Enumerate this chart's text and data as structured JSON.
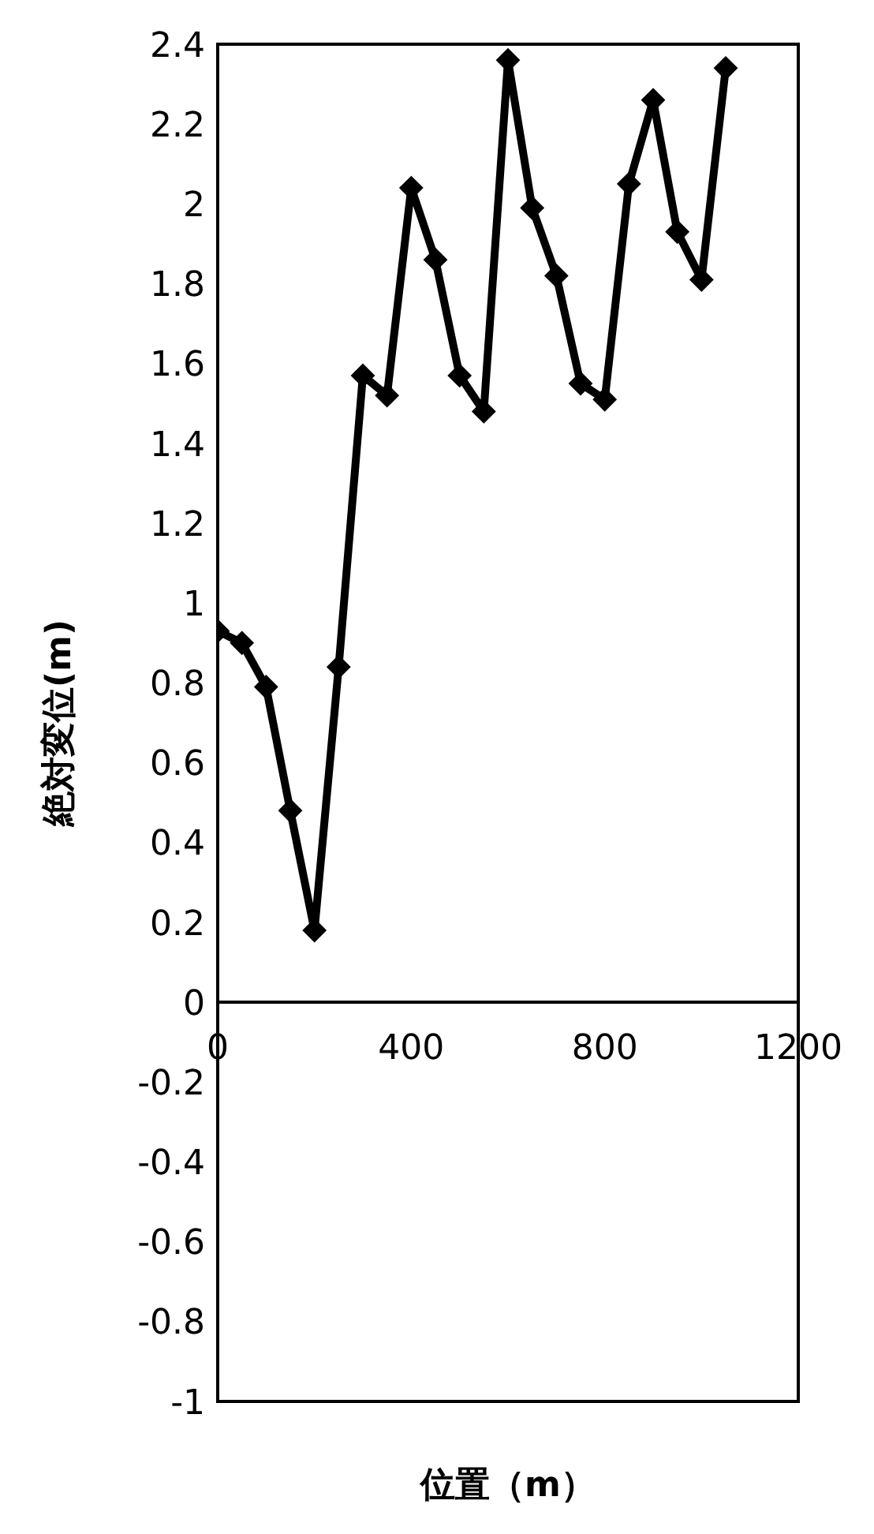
{
  "chart_data": {
    "type": "line",
    "xlabel": "位置（m）",
    "ylabel": "絶対変位(m)",
    "x": [
      0,
      50,
      100,
      150,
      200,
      250,
      300,
      350,
      400,
      450,
      500,
      550,
      600,
      650,
      700,
      750,
      800,
      850,
      900,
      950,
      1000,
      1050
    ],
    "series": [
      {
        "color": "#000000",
        "values": [
          0.93,
          0.9,
          0.79,
          0.48,
          0.18,
          0.84,
          1.57,
          1.52,
          2.04,
          1.86,
          1.57,
          1.48,
          2.36,
          1.99,
          1.82,
          1.55,
          1.51,
          2.05,
          2.26,
          1.93,
          1.81,
          2.34
        ]
      }
    ],
    "xlim": [
      0,
      1200
    ],
    "xticks": [
      0,
      400,
      800,
      1200
    ],
    "ylim": [
      -1,
      2.4
    ],
    "yticks": [
      -1,
      -0.8,
      -0.6,
      -0.4,
      -0.2,
      0,
      0.2,
      0.4,
      0.6,
      0.8,
      1,
      1.2,
      1.4,
      1.6,
      1.8,
      2,
      2.2,
      2.4
    ],
    "grid": false,
    "legend": false,
    "marker": "diamond",
    "line_style": "solid"
  }
}
